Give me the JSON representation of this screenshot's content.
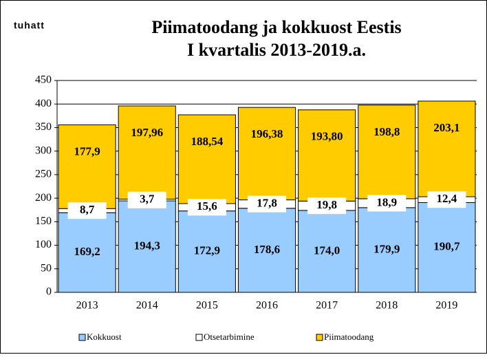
{
  "chart_data": {
    "type": "stacked_bar",
    "title": [
      "Piimatoodang ja kokkuost Eestis",
      "I kvartalis 2013-2019.a."
    ],
    "y_unit_label": "tuhatt",
    "categories": [
      "2013",
      "2014",
      "2015",
      "2016",
      "2017",
      "2018",
      "2019"
    ],
    "series": [
      {
        "name": "Kokkuost",
        "color": "#99ccff",
        "values": [
          169.2,
          194.3,
          172.9,
          178.6,
          174.0,
          179.9,
          190.7
        ],
        "value_labels": [
          "169,2",
          "194,3",
          "172,9",
          "178,6",
          "174,0",
          "179,9",
          "190,7"
        ]
      },
      {
        "name": "Otsetarbimine",
        "color": "#ffffff",
        "values": [
          8.7,
          3.7,
          15.6,
          17.8,
          19.8,
          18.9,
          12.4
        ],
        "value_labels": [
          "8,7",
          "3,7",
          "15,6",
          "17,8",
          "19,8",
          "18,9",
          "12,4"
        ]
      },
      {
        "name": "Piimatoodang",
        "color": "#ffcc00",
        "values": [
          177.9,
          197.96,
          188.54,
          196.38,
          193.8,
          198.8,
          203.1
        ],
        "value_labels": [
          "177,9",
          "197,96",
          "188,54",
          "196,38",
          "193,80",
          "198,8",
          "203,1"
        ]
      }
    ],
    "ylim": [
      0,
      450
    ],
    "yticks": [
      0,
      50,
      100,
      150,
      200,
      250,
      300,
      350,
      400,
      450
    ],
    "grid": true,
    "legend": "bottom"
  }
}
